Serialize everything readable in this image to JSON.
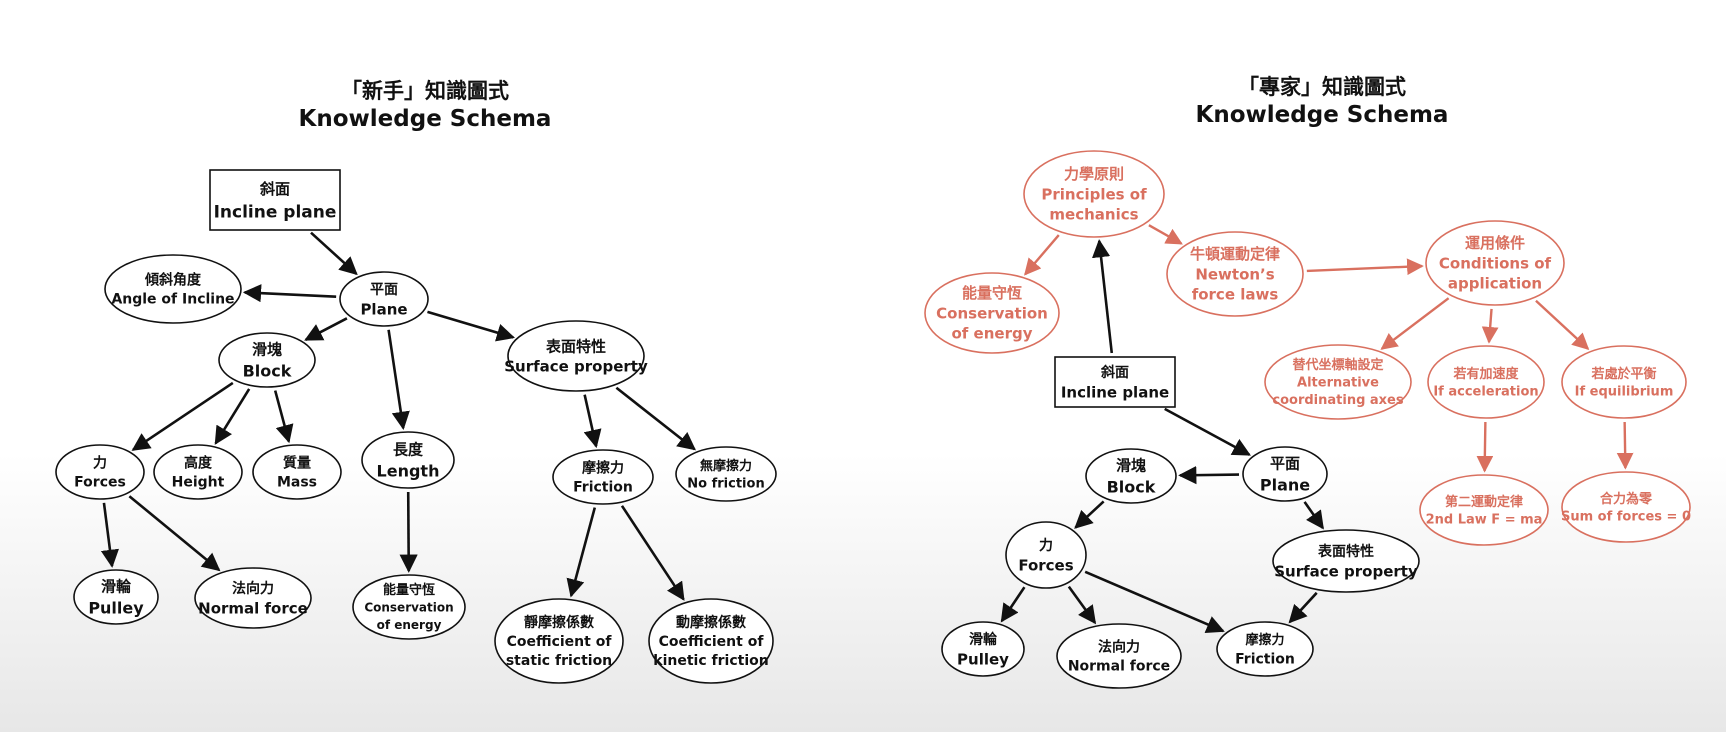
{
  "novice": {
    "title_zh": "「新手」知識圖式",
    "title_en": "Knowledge Schema",
    "nodes": {
      "incline": {
        "zh": "斜面",
        "en": "Incline plane"
      },
      "plane": {
        "zh": "平面",
        "en": "Plane"
      },
      "angle": {
        "zh": "傾斜角度",
        "en": "Angle of Incline"
      },
      "block": {
        "zh": "滑塊",
        "en": "Block"
      },
      "surface": {
        "zh": "表面特性",
        "en": "Surface property"
      },
      "forces": {
        "zh": "力",
        "en": "Forces"
      },
      "height": {
        "zh": "高度",
        "en": "Height"
      },
      "mass": {
        "zh": "質量",
        "en": "Mass"
      },
      "length": {
        "zh": "長度",
        "en": "Length"
      },
      "friction": {
        "zh": "摩擦力",
        "en": "Friction"
      },
      "nofriction": {
        "zh": "無摩擦力",
        "en": "No friction"
      },
      "pulley": {
        "zh": "滑輪",
        "en": "Pulley"
      },
      "normal": {
        "zh": "法向力",
        "en": "Normal force"
      },
      "energy": {
        "zh": "能量守恆",
        "en": "Conservation",
        "en2": "of energy"
      },
      "static": {
        "zh": "靜摩擦係數",
        "en": "Coefficient of",
        "en2": "static friction"
      },
      "kinetic": {
        "zh": "動摩擦係數",
        "en": "Coefficient of",
        "en2": "kinetic friction"
      }
    }
  },
  "expert": {
    "title_zh": "「專家」知識圖式",
    "title_en": "Knowledge Schema",
    "nodes": {
      "principles": {
        "zh": "力學原則",
        "en": "Principles of",
        "en2": "mechanics"
      },
      "newton": {
        "zh": "牛頓運動定律",
        "en": "Newton’s",
        "en2": "force laws"
      },
      "conditions": {
        "zh": "運用條件",
        "en": "Conditions of",
        "en2": "application"
      },
      "energy": {
        "zh": "能量守恆",
        "en": "Conservation",
        "en2": "of energy"
      },
      "axes": {
        "zh": "替代坐標軸設定",
        "en": "Alternative",
        "en2": "coordinating axes"
      },
      "accel": {
        "zh": "若有加速度",
        "en": "If acceleration"
      },
      "equil": {
        "zh": "若處於平衡",
        "en": "If equilibrium"
      },
      "secondlaw": {
        "zh": "第二運動定律",
        "en": "2nd Law F = ma"
      },
      "sumzero": {
        "zh": "合力為零",
        "en": "Sum of forces = 0"
      },
      "incline": {
        "zh": "斜面",
        "en": "Incline plane"
      },
      "block": {
        "zh": "滑塊",
        "en": "Block"
      },
      "plane": {
        "zh": "平面",
        "en": "Plane"
      },
      "forces": {
        "zh": "力",
        "en": "Forces"
      },
      "surface": {
        "zh": "表面特性",
        "en": "Surface property"
      },
      "pulley": {
        "zh": "滑輪",
        "en": "Pulley"
      },
      "normal": {
        "zh": "法向力",
        "en": "Normal force"
      },
      "friction": {
        "zh": "摩擦力",
        "en": "Friction"
      }
    }
  },
  "colors": {
    "black": "#111111",
    "expert_accent": "#d9705f"
  }
}
